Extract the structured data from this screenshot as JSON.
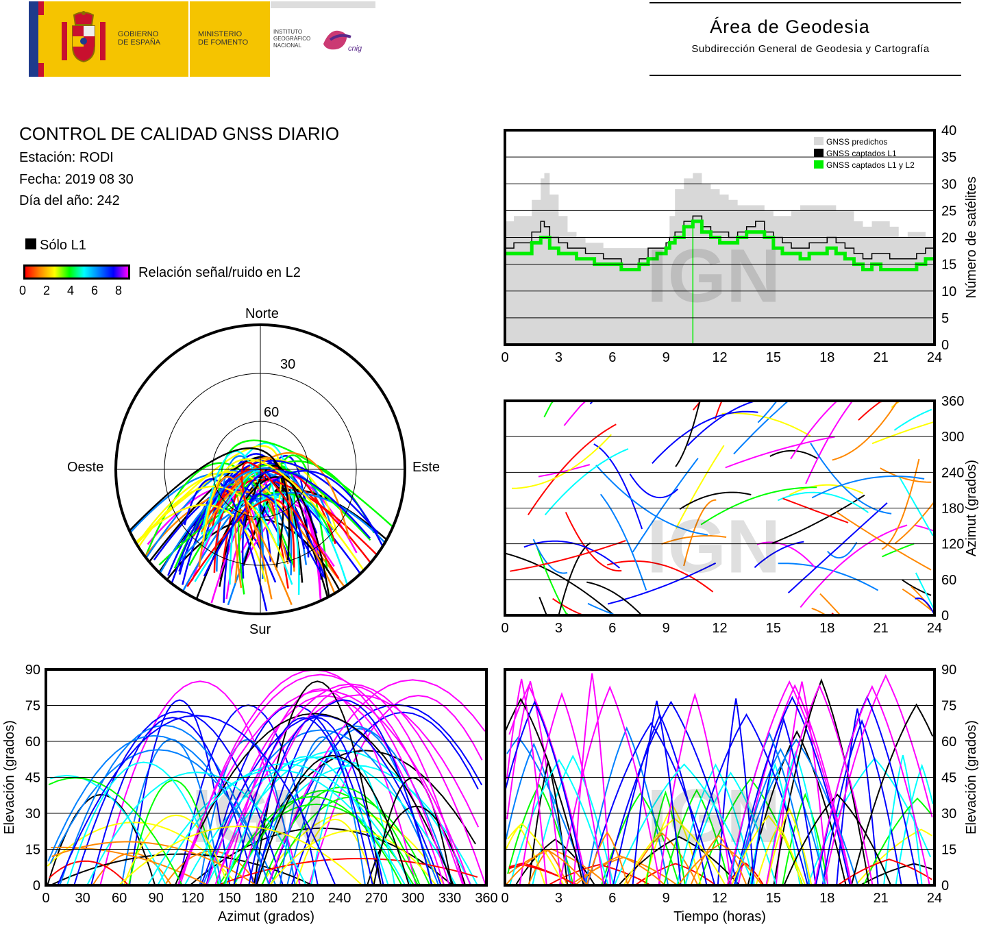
{
  "header": {
    "gov_line1": "GOBIERNO",
    "gov_line2": "DE ESPAÑA",
    "min_line1": "MINISTERIO",
    "min_line2": "DE FOMENTO",
    "ign_line1": "INSTITUTO",
    "ign_line2": "GEOGRÁFICO",
    "ign_line3": "NACIONAL",
    "cnig": "cnig",
    "area_title": "Área de Geodesia",
    "area_subtitle": "Subdirección General de Geodesia y Cartografía"
  },
  "info": {
    "title": "CONTROL DE CALIDAD GNSS DIARIO",
    "station": "Estación: RODI",
    "date": "Fecha: 2019 08 30",
    "doy": "Día del año: 242"
  },
  "legend": {
    "l1_only": "Sólo L1",
    "snr_label": "Relación señal/ruido en L2",
    "snr_ticks": [
      "0",
      "2",
      "4",
      "6",
      "8"
    ],
    "snr_colors": [
      "#ff0000",
      "#ff8800",
      "#ffff00",
      "#00ff00",
      "#00ffff",
      "#0080ff",
      "#0000ff",
      "#ff00ff"
    ],
    "l1_color": "#000000"
  },
  "watermark": "IGN",
  "skyplot": {
    "north": "Norte",
    "south": "Sur",
    "east": "Este",
    "west": "Oeste",
    "ring_labels": [
      "30",
      "60"
    ]
  },
  "chart_data": [
    {
      "id": "satellite-count",
      "type": "line",
      "x_range": [
        0,
        24
      ],
      "xticks": [
        "0",
        "3",
        "6",
        "9",
        "12",
        "15",
        "18",
        "21",
        "24"
      ],
      "ylabel": "Número de satélites",
      "ylim": [
        0,
        40
      ],
      "yticks": [
        "0",
        "5",
        "10",
        "15",
        "20",
        "25",
        "30",
        "35",
        "40"
      ],
      "legend_position": "top-right",
      "grid": true,
      "series": [
        {
          "name": "GNSS predichos",
          "color": "#d8d8d8",
          "x": [
            0,
            0.5,
            1,
            1.5,
            2,
            2.2,
            2.5,
            3,
            3.5,
            4,
            4.5,
            5,
            5.5,
            6,
            6.5,
            7,
            7.5,
            8,
            8.5,
            9,
            9.2,
            9.5,
            10,
            10.5,
            11,
            11.5,
            12,
            12.5,
            13,
            13.5,
            14,
            14.5,
            15,
            15.5,
            16,
            16.5,
            17,
            17.5,
            18,
            18.5,
            19,
            19.5,
            20,
            20.5,
            21,
            21.5,
            22,
            22.5,
            23,
            23.5,
            24
          ],
          "values": [
            23,
            24,
            24,
            27,
            31,
            32,
            28,
            24,
            21,
            20,
            19,
            19,
            18,
            18,
            18,
            18,
            18,
            18,
            18,
            19,
            24,
            29,
            31,
            32,
            30,
            29,
            28,
            27,
            26,
            26,
            26,
            25,
            24,
            24,
            25,
            26,
            26,
            26,
            26,
            25,
            25,
            23,
            22,
            23,
            23,
            22,
            20,
            21,
            21,
            20,
            19
          ]
        },
        {
          "name": "GNSS captados L1",
          "color": "#000000",
          "x": [
            0,
            0.5,
            1,
            1.5,
            2,
            2.2,
            2.5,
            3,
            3.5,
            4,
            4.5,
            5,
            5.5,
            6,
            6.5,
            7,
            7.5,
            8,
            8.5,
            9,
            9.2,
            9.5,
            10,
            10.5,
            11,
            11.5,
            12,
            12.5,
            13,
            13.5,
            14,
            14.5,
            15,
            15.5,
            16,
            16.5,
            17,
            17.5,
            18,
            18.5,
            19,
            19.5,
            20,
            20.5,
            21,
            21.5,
            22,
            22.5,
            23,
            23.5,
            24
          ],
          "values": [
            18,
            19,
            19,
            21,
            23,
            22,
            20,
            19,
            18,
            18,
            17,
            17,
            16,
            16,
            15,
            15,
            16,
            18,
            18,
            19,
            20,
            21,
            23,
            24,
            22,
            21,
            21,
            20,
            21,
            22,
            23,
            21,
            20,
            19,
            18,
            18,
            19,
            19,
            20,
            19,
            18,
            17,
            16,
            17,
            17,
            16,
            16,
            16,
            17,
            18,
            17
          ]
        },
        {
          "name": "GNSS captados L1 y L2",
          "color": "#00ee00",
          "x": [
            0,
            0.5,
            1,
            1.5,
            2,
            2.2,
            2.5,
            3,
            3.5,
            4,
            4.5,
            5,
            5.5,
            6,
            6.5,
            7,
            7.5,
            8,
            8.5,
            9,
            9.2,
            9.5,
            10,
            10.5,
            11,
            11.5,
            12,
            12.5,
            13,
            13.5,
            14,
            14.5,
            15,
            15.5,
            16,
            16.5,
            17,
            17.5,
            18,
            18.5,
            19,
            19.5,
            20,
            20.5,
            21,
            21.5,
            22,
            22.5,
            23,
            23.5,
            24
          ],
          "values": [
            17,
            17,
            17,
            19,
            20,
            20,
            18,
            17,
            17,
            16,
            16,
            15,
            15,
            15,
            14,
            14,
            15,
            16,
            17,
            18,
            19,
            20,
            22,
            23,
            21,
            20,
            19,
            19,
            20,
            21,
            21,
            20,
            18,
            17,
            17,
            16,
            17,
            17,
            18,
            17,
            16,
            15,
            14,
            15,
            14,
            14,
            14,
            14,
            15,
            16,
            16
          ]
        }
      ]
    },
    {
      "id": "azimuth-time",
      "type": "scatter",
      "x_range": [
        0,
        24
      ],
      "xticks": [
        "0",
        "3",
        "6",
        "9",
        "12",
        "15",
        "18",
        "21",
        "24"
      ],
      "ylabel": "Azimut (grados)",
      "ylim": [
        0,
        360
      ],
      "yticks": [
        "0",
        "60",
        "120",
        "180",
        "240",
        "300",
        "360"
      ],
      "grid": true
    },
    {
      "id": "elevation-azimuth",
      "type": "scatter",
      "xlabel": "Azimut (grados)",
      "xlim": [
        0,
        360
      ],
      "xticks": [
        "0",
        "30",
        "60",
        "90",
        "120",
        "150",
        "180",
        "210",
        "240",
        "270",
        "300",
        "330",
        "360"
      ],
      "ylabel": "Elevación (grados)",
      "ylim": [
        0,
        90
      ],
      "yticks": [
        "0",
        "15",
        "30",
        "45",
        "60",
        "75",
        "90"
      ],
      "grid": true
    },
    {
      "id": "elevation-time",
      "type": "scatter",
      "xlabel": "Tiempo (horas)",
      "x_range": [
        0,
        24
      ],
      "xticks": [
        "0",
        "3",
        "6",
        "9",
        "12",
        "15",
        "18",
        "21",
        "24"
      ],
      "ylabel": "Elevación (grados)",
      "ylim": [
        0,
        90
      ],
      "yticks": [
        "0",
        "15",
        "30",
        "45",
        "60",
        "75",
        "90"
      ],
      "grid": true
    }
  ]
}
